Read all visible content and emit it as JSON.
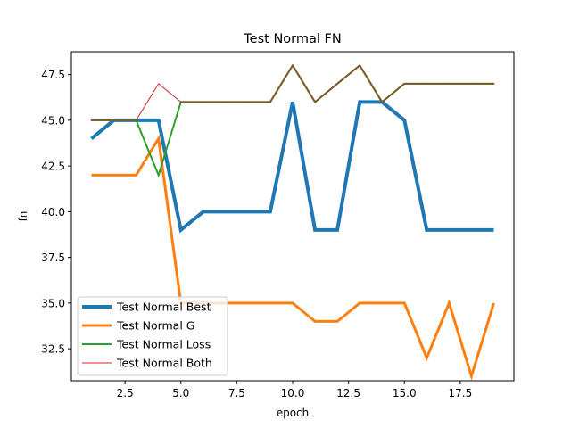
{
  "chart_data": {
    "type": "line",
    "title": "Test Normal FN",
    "xlabel": "epoch",
    "ylabel": "fn",
    "xlim": [
      0.1,
      19.9
    ],
    "ylim": [
      30.75,
      48.75
    ],
    "xticks": [
      2.5,
      5.0,
      7.5,
      10.0,
      12.5,
      15.0,
      17.5
    ],
    "xtick_labels": [
      "2.5",
      "5.0",
      "7.5",
      "10.0",
      "12.5",
      "15.0",
      "17.5"
    ],
    "yticks": [
      32.5,
      35.0,
      37.5,
      40.0,
      42.5,
      45.0,
      47.5
    ],
    "ytick_labels": [
      "32.5",
      "35.0",
      "37.5",
      "40.0",
      "42.5",
      "45.0",
      "47.5"
    ],
    "grid": false,
    "legend_position": "lower-left",
    "x": [
      1,
      2,
      3,
      4,
      5,
      6,
      7,
      8,
      9,
      10,
      11,
      12,
      13,
      14,
      15,
      16,
      17,
      18,
      19
    ],
    "series": [
      {
        "name": "Test Normal Best",
        "color": "#1f77b4",
        "width": 4,
        "values": [
          44,
          45,
          45,
          45,
          39,
          40,
          40,
          40,
          40,
          46,
          39,
          39,
          46,
          46,
          45,
          39,
          39,
          39,
          39
        ]
      },
      {
        "name": "Test Normal G",
        "color": "#ff7f0e",
        "width": 3,
        "values": [
          42,
          42,
          42,
          44,
          35,
          35,
          35,
          35,
          35,
          35,
          34,
          34,
          35,
          35,
          35,
          32,
          35,
          31,
          35
        ]
      },
      {
        "name": "Test Normal Loss",
        "color": "#2ca02c",
        "width": 2,
        "values": [
          45,
          45,
          45,
          42,
          46,
          46,
          46,
          46,
          46,
          48,
          46,
          47,
          48,
          46,
          47,
          47,
          47,
          47,
          47
        ]
      },
      {
        "name": "Test Normal Both",
        "color": "#d62728",
        "width": 1,
        "values": [
          45,
          45,
          45,
          47,
          46,
          46,
          46,
          46,
          46,
          48,
          46,
          47,
          48,
          46,
          47,
          47,
          47,
          47,
          47
        ]
      }
    ],
    "overlap_color": "#7f5a26"
  }
}
